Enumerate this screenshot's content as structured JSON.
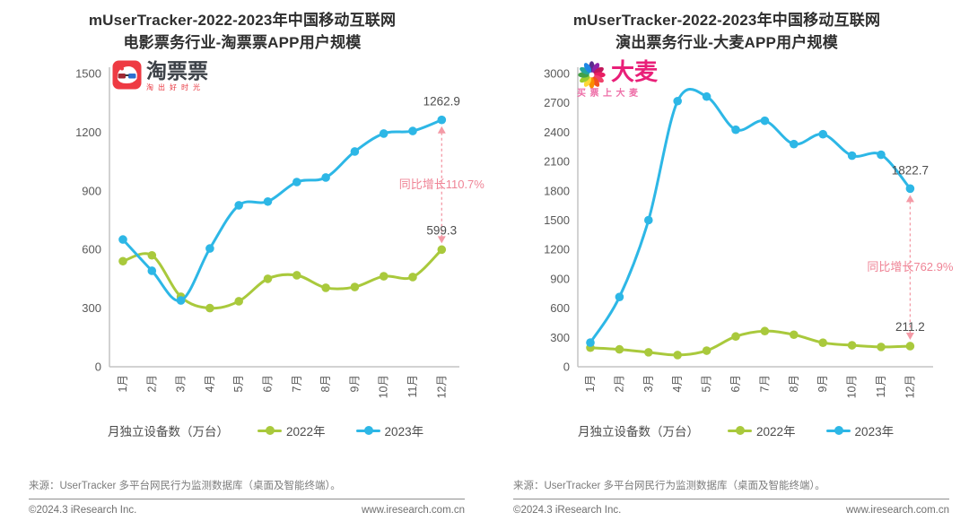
{
  "legend": {
    "axis_title": "月独立设备数（万台）"
  },
  "footer": {
    "source": "来源：UserTracker 多平台网民行为监测数据库（桌面及智能终端）。",
    "copyright": "©2024.3 iResearch Inc.",
    "website": "www.iresearch.com.cn"
  },
  "colors": {
    "series_2022": "#a9c93c",
    "series_2023": "#2db7e6",
    "annotation_pink": "#f49aa6",
    "annotation_text_pink": "#ef8496",
    "value_label": "#4d4d4d",
    "axis_line": "#c3c3c3",
    "tick_text": "#595959"
  },
  "chart_data": [
    {
      "type": "line",
      "title_lines": [
        "mUserTracker-2022-2023年中国移动互联网",
        "电影票务行业-淘票票APP用户规模"
      ],
      "logo": {
        "brand": "淘票票",
        "slogan": "淘出好时光"
      },
      "categories": [
        "1月",
        "2月",
        "3月",
        "4月",
        "5月",
        "6月",
        "7月",
        "8月",
        "9月",
        "10月",
        "11月",
        "12月"
      ],
      "series": [
        {
          "name": "2022年",
          "color": "#a9c93c",
          "values": [
            540,
            570,
            358,
            300,
            335,
            450,
            468,
            404,
            408,
            463,
            459,
            599.3
          ]
        },
        {
          "name": "2023年",
          "color": "#2db7e6",
          "values": [
            651,
            491,
            339,
            605,
            826,
            845,
            945,
            968,
            1101,
            1193,
            1206,
            1262.9
          ]
        }
      ],
      "ylim": [
        0,
        1500
      ],
      "ytick_step": 300,
      "grid": false,
      "legend_position": "bottom",
      "annotation": {
        "end_value_2023": "1262.9",
        "end_value_2022": "599.3",
        "growth_label": "同比增长110.7%"
      }
    },
    {
      "type": "line",
      "title_lines": [
        "mUserTracker-2022-2023年中国移动互联网",
        "演出票务行业-大麦APP用户规模"
      ],
      "logo": {
        "brand": "大麦",
        "slogan": "买票上大麦"
      },
      "categories": [
        "1月",
        "2月",
        "3月",
        "4月",
        "5月",
        "6月",
        "7月",
        "8月",
        "9月",
        "10月",
        "11月",
        "12月"
      ],
      "series": [
        {
          "name": "2022年",
          "color": "#a9c93c",
          "values": [
            195,
            178,
            148,
            120,
            165,
            310,
            365,
            328,
            246,
            220,
            203,
            211.2
          ]
        },
        {
          "name": "2023年",
          "color": "#2db7e6",
          "values": [
            247,
            714,
            1500,
            2718,
            2764,
            2425,
            2517,
            2278,
            2379,
            2160,
            2169,
            1822.7
          ]
        }
      ],
      "ylim": [
        0,
        3000
      ],
      "ytick_step": 300,
      "grid": false,
      "legend_position": "bottom",
      "annotation": {
        "end_value_2023": "1822.7",
        "end_value_2022": "211.2",
        "growth_label": "同比增长762.9%"
      }
    }
  ]
}
